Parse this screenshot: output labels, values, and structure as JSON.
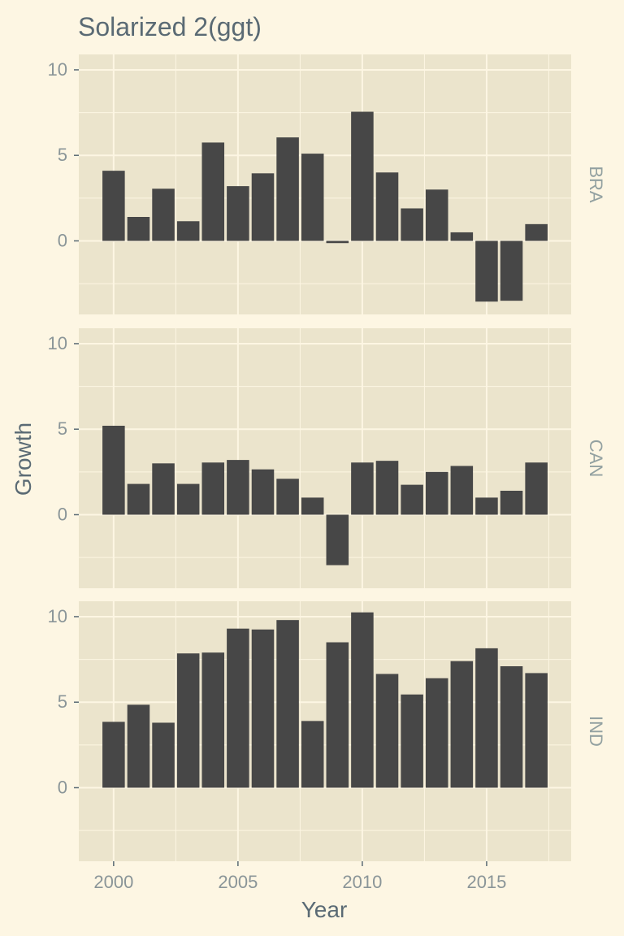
{
  "chart_data": {
    "type": "bar",
    "title": "Solarized  2(ggt)",
    "xlabel": "Year",
    "ylabel": "Growth",
    "x": [
      2000,
      2001,
      2002,
      2003,
      2004,
      2005,
      2006,
      2007,
      2008,
      2009,
      2010,
      2011,
      2012,
      2013,
      2014,
      2015,
      2016,
      2017
    ],
    "xlim": [
      1998.6,
      2018.4
    ],
    "ylim": [
      -4.3,
      10.9
    ],
    "x_ticks": [
      2000,
      2005,
      2010,
      2015
    ],
    "y_ticks": [
      0,
      5,
      10
    ],
    "grid": true,
    "facet_strip_position": "right",
    "colors": {
      "background": "#fdf6e3",
      "panel": "#ebe4cc",
      "grid": "#fdf6e3",
      "bar": "#474747",
      "text": "#5a6a74",
      "tick_text": "#8a9598",
      "strip_text": "#93a1a1"
    },
    "series": [
      {
        "name": "BRA",
        "values": [
          4.1,
          1.4,
          3.05,
          1.15,
          5.75,
          3.2,
          3.95,
          6.05,
          5.1,
          -0.13,
          7.55,
          4.0,
          1.9,
          3.0,
          0.5,
          -3.55,
          -3.5,
          0.98
        ]
      },
      {
        "name": "CAN",
        "values": [
          5.2,
          1.8,
          3.0,
          1.8,
          3.05,
          3.2,
          2.65,
          2.1,
          1.0,
          -2.95,
          3.05,
          3.15,
          1.75,
          2.5,
          2.85,
          1.0,
          1.4,
          3.05
        ]
      },
      {
        "name": "IND",
        "values": [
          3.85,
          4.85,
          3.8,
          7.85,
          7.9,
          9.3,
          9.25,
          9.8,
          3.9,
          8.5,
          10.25,
          6.65,
          5.45,
          6.4,
          7.4,
          8.15,
          7.1,
          6.7
        ]
      }
    ]
  }
}
